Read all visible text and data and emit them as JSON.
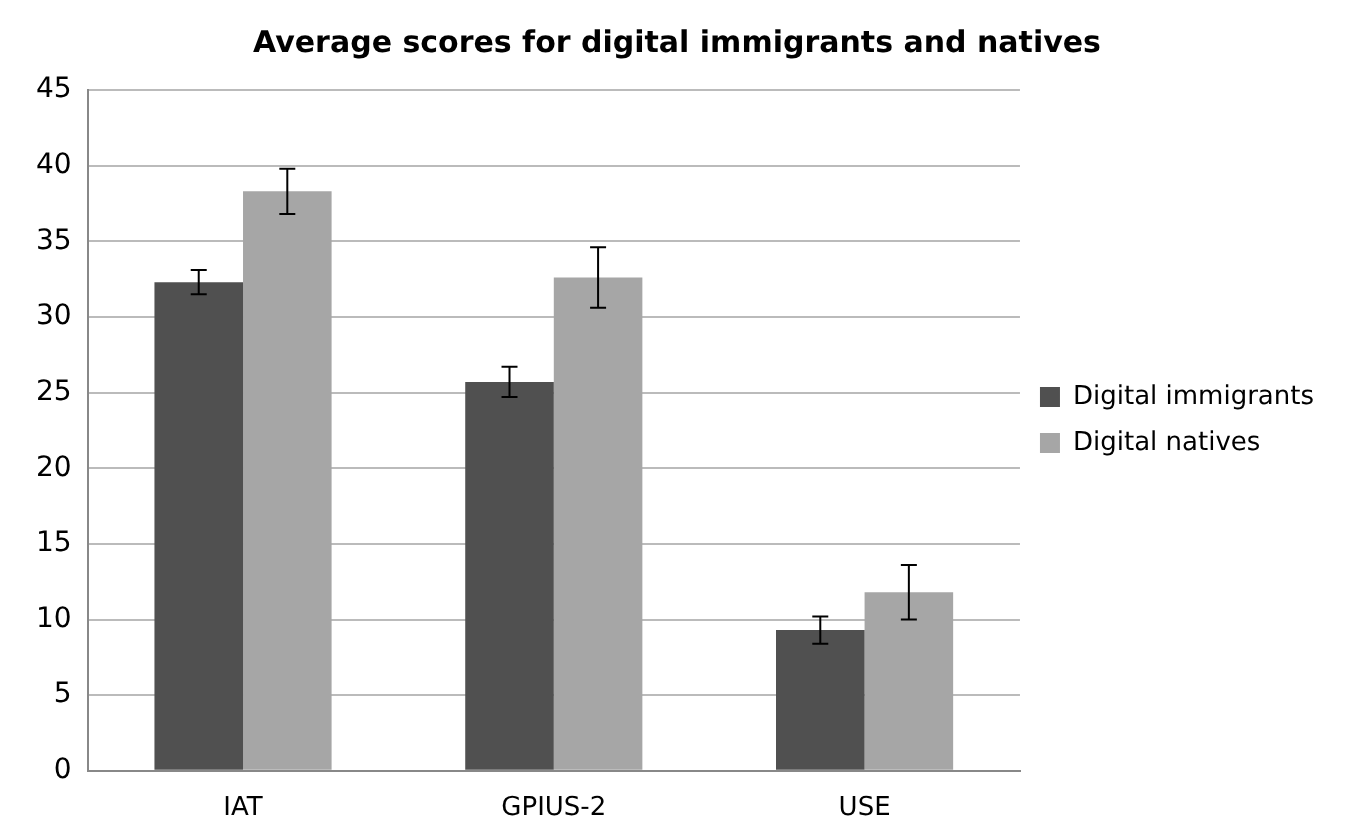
{
  "chart_data": {
    "type": "bar",
    "title": "Average scores for digital immigrants and natives",
    "categories": [
      "IAT",
      "GPIUS-2",
      "USE"
    ],
    "series": [
      {
        "name": "Digital immigrants",
        "color": "#505050",
        "values": [
          32.3,
          25.7,
          9.3
        ],
        "errors": [
          0.8,
          1.0,
          0.9
        ]
      },
      {
        "name": "Digital natives",
        "color": "#a6a6a6",
        "values": [
          38.3,
          32.6,
          11.8
        ],
        "errors": [
          1.5,
          2.0,
          1.8
        ]
      }
    ],
    "ylim": [
      0,
      45
    ],
    "yticks": [
      0,
      5,
      10,
      15,
      20,
      25,
      30,
      35,
      40,
      45
    ],
    "grid": "y",
    "legend": "right"
  }
}
